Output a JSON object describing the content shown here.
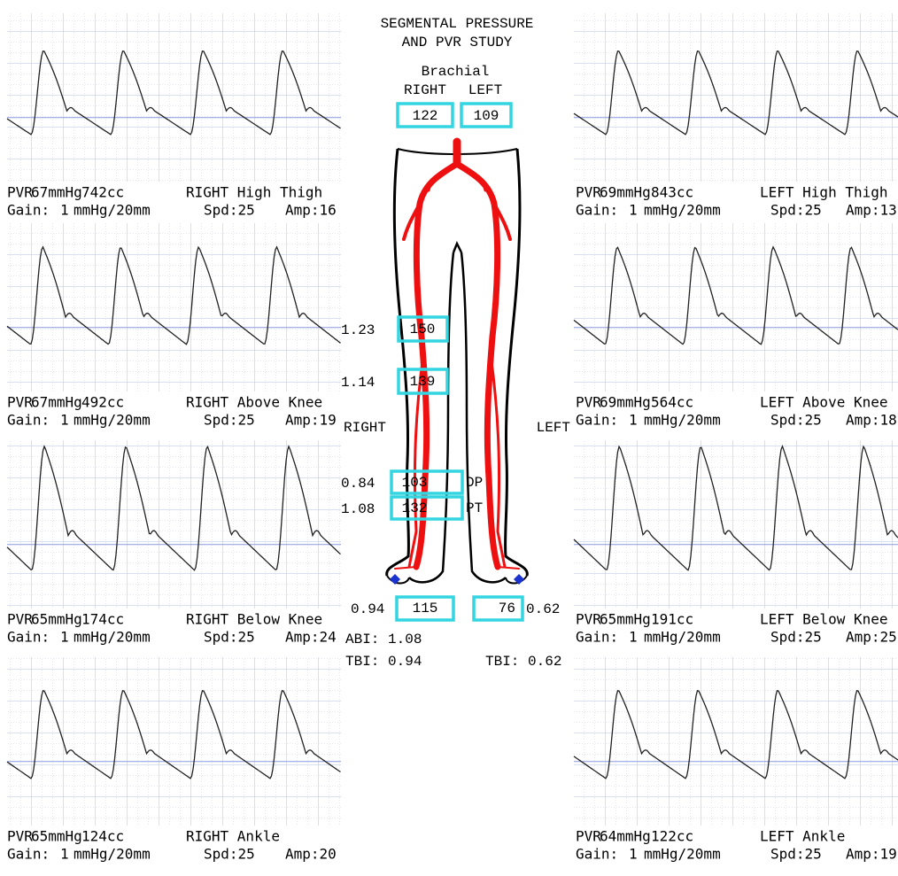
{
  "header": {
    "title_line1": "SEGMENTAL PRESSURE",
    "title_line2": "AND PVR STUDY"
  },
  "brachial": {
    "label": "Brachial",
    "right_label": "RIGHT",
    "left_label": "LEFT",
    "right": "122",
    "left": "109"
  },
  "segments": {
    "high_thigh": {
      "index": "1.23",
      "pressure": "150"
    },
    "above_knee": {
      "index": "1.14",
      "pressure": "139"
    },
    "dp": {
      "index": "0.84",
      "pressure": "103",
      "label": "DP"
    },
    "pt": {
      "index": "1.08",
      "pressure": "132",
      "label": "PT"
    },
    "toe_right": {
      "index": "0.94",
      "pressure": "115"
    },
    "toe_left": {
      "index": "0.62",
      "pressure": "76"
    }
  },
  "side_labels": {
    "right": "RIGHT",
    "left": "LEFT"
  },
  "summary": {
    "abi": "ABI: 1.08",
    "tbi_right": "TBI: 0.94",
    "tbi_left": "TBI: 0.62"
  },
  "panels": {
    "left": [
      {
        "pvr_label": "PVR",
        "pressure": "67mmHg",
        "volume": "742cc",
        "site": "RIGHT High Thigh",
        "gain_label": "Gain:",
        "gain": "1",
        "gain_unit": "mmHg/20mm",
        "speed": "Spd:25",
        "amp": "Amp:16",
        "pressure_color": "#000000"
      },
      {
        "pvr_label": "PVR",
        "pressure": "67mmHg",
        "volume": "492cc",
        "site": "RIGHT Above Knee",
        "gain_label": "Gain:",
        "gain": "1",
        "gain_unit": "mmHg/20mm",
        "speed": "Spd:25",
        "amp": "Amp:19",
        "pressure_color": "#000000"
      },
      {
        "pvr_label": "PVR",
        "pressure": "65mmHg",
        "volume": "174cc",
        "site": "RIGHT Below Knee",
        "gain_label": "Gain:",
        "gain": "1",
        "gain_unit": "mmHg/20mm",
        "speed": "Spd:25",
        "amp": "Amp:24",
        "pressure_color": "#000000"
      },
      {
        "pvr_label": "PVR",
        "pressure": "65mmHg",
        "volume": "124cc",
        "site": "RIGHT Ankle",
        "gain_label": "Gain:",
        "gain": "1",
        "gain_unit": "mmHg/20mm",
        "speed": "Spd:25",
        "amp": "Amp:20",
        "pressure_color": "#000000"
      }
    ],
    "right": [
      {
        "pvr_label": "PVR",
        "pressure": "69mmHg",
        "volume": "843cc",
        "site": "LEFT High Thigh",
        "gain_label": "Gain:",
        "gain": "1",
        "gain_unit": "mmHg/20mm",
        "speed": "Spd:25",
        "amp": "Amp:13",
        "pressure_color": "#e02020"
      },
      {
        "pvr_label": "PVR",
        "pressure": "69mmHg",
        "volume": "564cc",
        "site": "LEFT Above Knee",
        "gain_label": "Gain:",
        "gain": "1",
        "gain_unit": "mmHg/20mm",
        "speed": "Spd:25",
        "amp": "Amp:18",
        "pressure_color": "#e02020"
      },
      {
        "pvr_label": "PVR",
        "pressure": "65mmHg",
        "volume": "191cc",
        "site": "LEFT Below Knee",
        "gain_label": "Gain:",
        "gain": "1",
        "gain_unit": "mmHg/20mm",
        "speed": "Spd:25",
        "amp": "Amp:25",
        "pressure_color": "#000000"
      },
      {
        "pvr_label": "PVR",
        "pressure": "64mmHg",
        "volume": "122cc",
        "site": "LEFT Ankle",
        "gain_label": "Gain:",
        "gain": "1",
        "gain_unit": "mmHg/20mm",
        "speed": "Spd:25",
        "amp": "Amp:19",
        "pressure_color": "#000000"
      }
    ]
  }
}
